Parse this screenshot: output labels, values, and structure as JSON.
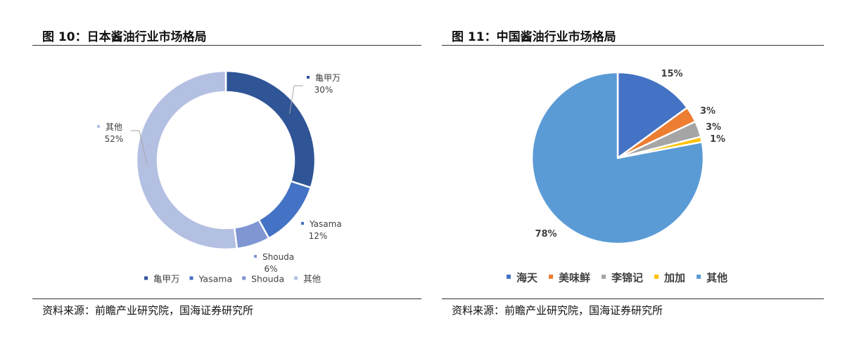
{
  "figures": [
    {
      "title": "图 10：日本酱油行业市场格局",
      "source": "资料来源：前瞻产业研究院，国海证券研究所",
      "chart_data": {
        "type": "pie",
        "variant": "donut",
        "title": "",
        "categories": [
          "亀甲万",
          "Yasama",
          "Shouda",
          "其他"
        ],
        "values": [
          30,
          12,
          6,
          52
        ],
        "labels": [
          "30%",
          "12%",
          "6%",
          "52%"
        ],
        "colors": [
          "#2f5597",
          "#4472c4",
          "#7f96d2",
          "#b4c0e2"
        ],
        "legend_position": "bottom"
      }
    },
    {
      "title": "图 11：中国酱油行业市场格局",
      "source": "资料来源：前瞻产业研究院，国海证券研究所",
      "chart_data": {
        "type": "pie",
        "title": "",
        "categories": [
          "海天",
          "美味鲜",
          "李锦记",
          "加加",
          "其他"
        ],
        "values": [
          15,
          3,
          3,
          1,
          78
        ],
        "labels": [
          "15%",
          "3%",
          "3%",
          "1%",
          "78%"
        ],
        "colors": [
          "#4472c4",
          "#ed7d31",
          "#a5a5a5",
          "#ffc000",
          "#5b9bd5"
        ],
        "legend_position": "bottom"
      }
    }
  ]
}
